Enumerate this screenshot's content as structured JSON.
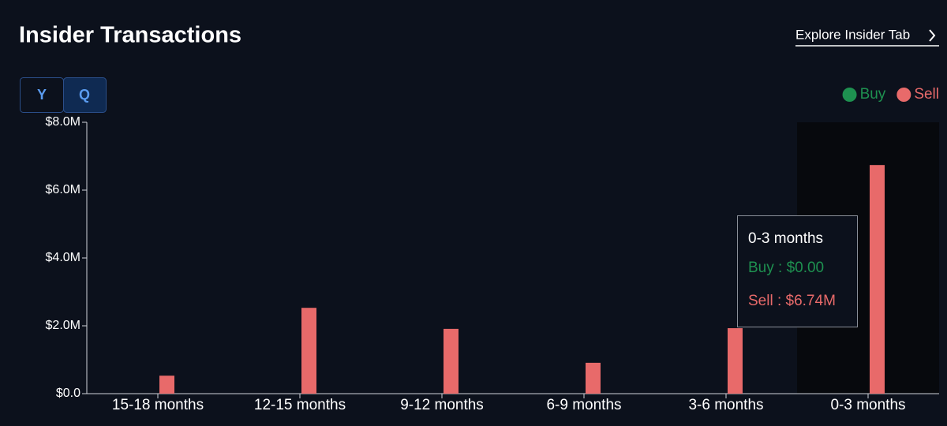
{
  "header": {
    "title": "Insider Transactions",
    "link": "Explore Insider Tab"
  },
  "toggle": [
    "Y",
    "Q"
  ],
  "chart_data": {
    "type": "bar",
    "categories": [
      "15-18 months",
      "12-15 months",
      "9-12 months",
      "6-9 months",
      "3-6 months",
      "0-3 months"
    ],
    "series": [
      {
        "name": "Buy",
        "color": "#1e9150",
        "values": [
          0,
          0,
          0,
          0,
          0,
          0
        ]
      },
      {
        "name": "Sell",
        "color": "#e86a6a",
        "values": [
          530000,
          2530000,
          1910000,
          910000,
          1930000,
          6740000
        ]
      }
    ],
    "ylim": [
      0,
      8000000
    ],
    "yticks": [
      {
        "value": 0,
        "label": "$0.0"
      },
      {
        "value": 2000000,
        "label": "$2.0M"
      },
      {
        "value": 4000000,
        "label": "$4.0M"
      },
      {
        "value": 6000000,
        "label": "$6.0M"
      },
      {
        "value": 8000000,
        "label": "$8.0M"
      }
    ],
    "legend": "top-right",
    "tooltip": {
      "title": "0-3 months",
      "buy": "Buy : $0.00",
      "sell": "Sell : $6.74M"
    }
  }
}
